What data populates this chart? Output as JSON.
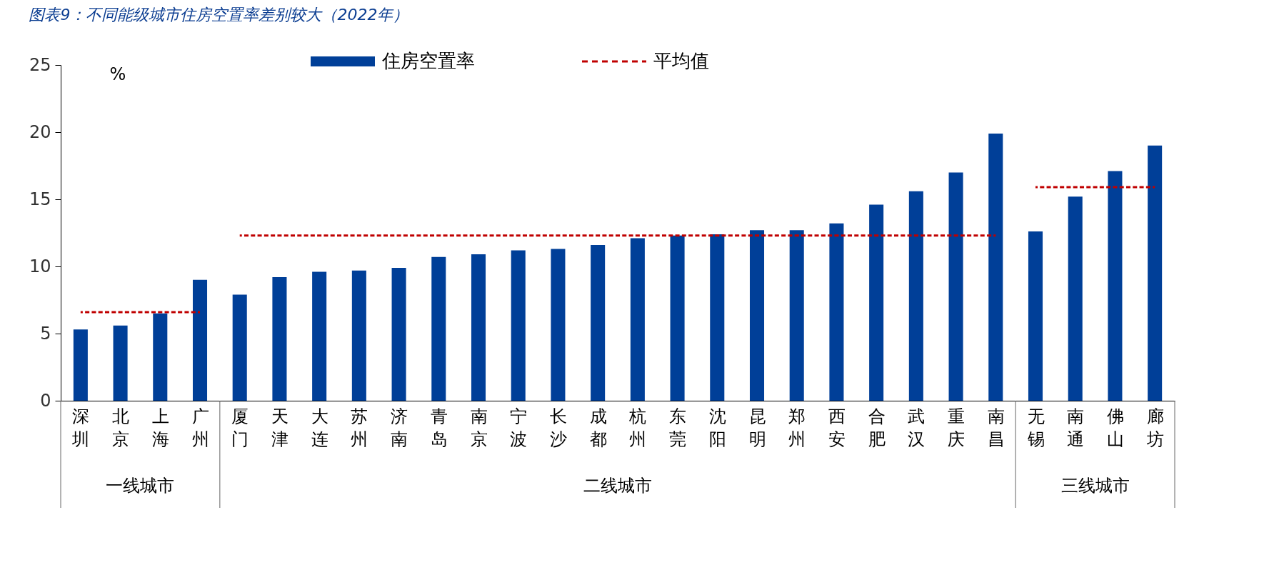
{
  "chart_data": {
    "type": "bar",
    "title": "图表9：不同能级城市住房空置率差别较大（2022年）",
    "ylabel": "%",
    "categories": [
      "深圳",
      "北京",
      "上海",
      "广州",
      "厦门",
      "天津",
      "大连",
      "苏州",
      "济南",
      "青岛",
      "南京",
      "宁波",
      "长沙",
      "成都",
      "杭州",
      "东莞",
      "沈阳",
      "昆明",
      "郑州",
      "西安",
      "合肥",
      "武汉",
      "重庆",
      "南昌",
      "无锡",
      "南通",
      "佛山",
      "廊坊"
    ],
    "series": [
      {
        "name": "住房空置率",
        "color": "#003f98",
        "values": [
          5.3,
          5.6,
          6.5,
          9.0,
          7.9,
          9.2,
          9.6,
          9.7,
          9.9,
          10.7,
          10.9,
          11.2,
          11.3,
          11.6,
          12.1,
          12.3,
          12.4,
          12.7,
          12.7,
          13.2,
          14.6,
          15.6,
          17.0,
          19.9,
          12.6,
          15.2,
          17.1,
          19.0
        ]
      },
      {
        "name": "平均值",
        "type": "line",
        "color": "#c00000",
        "line_style": "dashed",
        "values": [
          6.6,
          6.6,
          6.6,
          6.6,
          12.3,
          12.3,
          12.3,
          12.3,
          12.3,
          12.3,
          12.3,
          12.3,
          12.3,
          12.3,
          12.3,
          12.3,
          12.3,
          12.3,
          12.3,
          12.3,
          12.3,
          12.3,
          12.3,
          12.3,
          15.9,
          15.9,
          15.9,
          15.9
        ]
      }
    ],
    "annotations": [
      "一线城市",
      "二线城市",
      "三线城市"
    ],
    "ylim": [
      0,
      25
    ],
    "yticks": [
      0,
      5,
      10,
      15,
      20,
      25
    ],
    "grid": false,
    "legend": "top"
  }
}
